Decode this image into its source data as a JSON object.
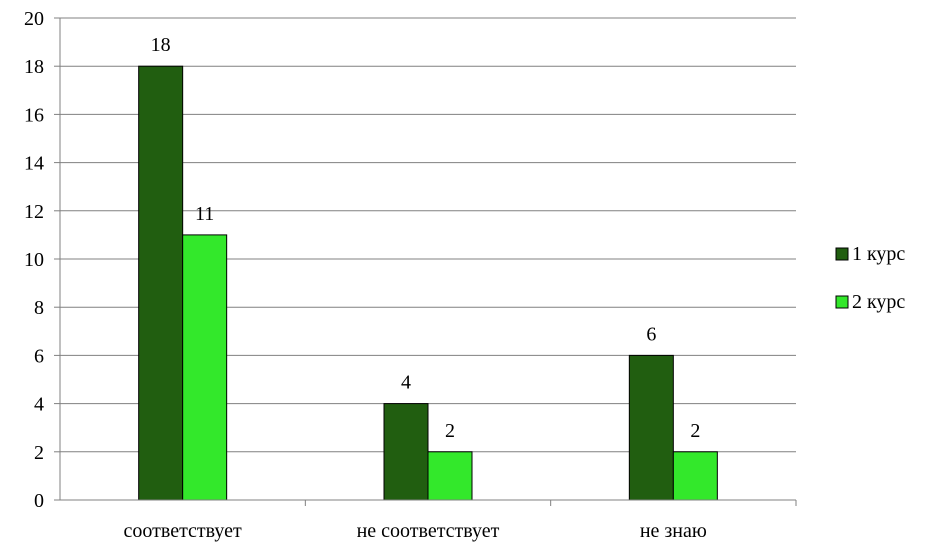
{
  "chart_data": {
    "type": "bar",
    "categories": [
      "соответствует",
      "не соответствует",
      "не знаю"
    ],
    "series": [
      {
        "name": "1 курс",
        "values": [
          18,
          4,
          6
        ],
        "color": "#215e10"
      },
      {
        "name": "2 курс",
        "values": [
          11,
          2,
          2
        ],
        "color": "#33e82b"
      }
    ],
    "ylim": [
      0,
      20
    ],
    "yticks": [
      0,
      2,
      4,
      6,
      8,
      10,
      12,
      14,
      16,
      18,
      20
    ],
    "grid": true,
    "legend": "right",
    "data_labels": true
  }
}
